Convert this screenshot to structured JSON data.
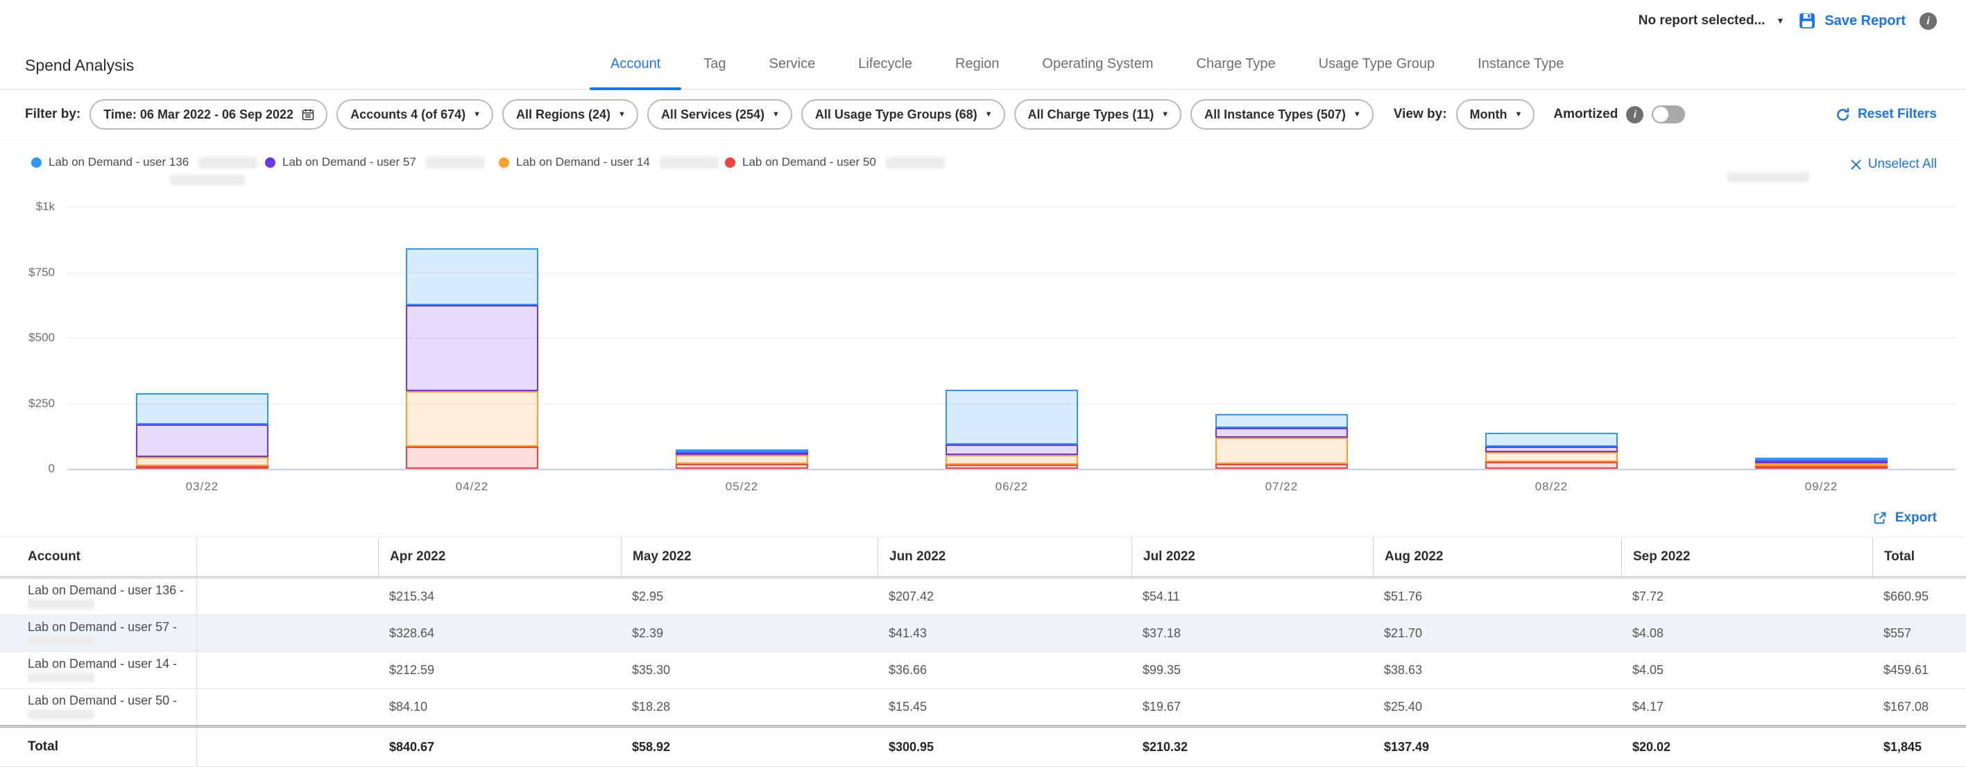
{
  "topbar": {
    "report_selector": "No report selected...",
    "save_report": "Save Report"
  },
  "page": {
    "title": "Spend Analysis"
  },
  "tabs": [
    {
      "label": "Account",
      "active": true
    },
    {
      "label": "Tag",
      "active": false
    },
    {
      "label": "Service",
      "active": false
    },
    {
      "label": "Lifecycle",
      "active": false
    },
    {
      "label": "Region",
      "active": false
    },
    {
      "label": "Operating System",
      "active": false
    },
    {
      "label": "Charge Type",
      "active": false
    },
    {
      "label": "Usage Type Group",
      "active": false
    },
    {
      "label": "Instance Type",
      "active": false
    }
  ],
  "filter_bar": {
    "label": "Filter by:",
    "time_pill": "Time: 06 Mar 2022 - 06 Sep 2022",
    "pills": [
      "Accounts 4 (of 674)",
      "All Regions (24)",
      "All Services (254)",
      "All Usage Type Groups (68)",
      "All Charge Types (11)",
      "All Instance Types (507)"
    ],
    "view_by_label": "View by:",
    "view_by_value": "Month",
    "amortized_label": "Amortized",
    "amortized_on": false,
    "reset_label": "Reset Filters"
  },
  "legend": {
    "items": [
      {
        "label": "Lab on Demand - user 136",
        "color": "#2e96f5"
      },
      {
        "label": "Lab on Demand - user 57",
        "color": "#6a35ee"
      },
      {
        "label": "Lab on Demand - user 14",
        "color": "#fba02f"
      },
      {
        "label": "Lab on Demand - user 50",
        "color": "#f0453c"
      }
    ],
    "unselect_all": "Unselect All"
  },
  "chart_data": {
    "type": "bar",
    "stacked": true,
    "categories": [
      "03/22",
      "04/22",
      "05/22",
      "06/22",
      "07/22",
      "08/22",
      "09/22"
    ],
    "series": [
      {
        "name": "Lab on Demand - user 136",
        "color": "#2e96f5",
        "values": [
          120,
          215.34,
          2.95,
          207.42,
          54.11,
          51.76,
          7.72
        ]
      },
      {
        "name": "Lab on Demand - user 57",
        "color": "#6a35ee",
        "values": [
          123,
          328.64,
          2.39,
          41.43,
          37.18,
          21.7,
          4.08
        ]
      },
      {
        "name": "Lab on Demand - user 14",
        "color": "#fba02f",
        "values": [
          35,
          212.59,
          35.3,
          36.66,
          99.35,
          38.63,
          4.05
        ]
      },
      {
        "name": "Lab on Demand - user 50",
        "color": "#f0453c",
        "values": [
          1.5,
          84.1,
          18.28,
          15.45,
          19.67,
          25.4,
          4.17
        ]
      }
    ],
    "stack_order_bottom_to_top": [
      "Lab on Demand - user 50",
      "Lab on Demand - user 14",
      "Lab on Demand - user 57",
      "Lab on Demand - user 136"
    ],
    "title": "",
    "xlabel": "",
    "ylabel": "",
    "ylim": [
      0,
      1000
    ],
    "y_ticks": [
      "$1k",
      "$750",
      "$500",
      "$250",
      "0"
    ],
    "grid": true,
    "legend_position": "top-left"
  },
  "export_label": "Export",
  "table": {
    "columns": [
      "Account",
      "Apr 2022",
      "May 2022",
      "Jun 2022",
      "Jul 2022",
      "Aug 2022",
      "Sep 2022",
      "Total"
    ],
    "rows": [
      {
        "account": "Lab on Demand - user 136 -",
        "highlight": false,
        "values": [
          "$215.34",
          "$2.95",
          "$207.42",
          "$54.11",
          "$51.76",
          "$7.72",
          "$660.95"
        ]
      },
      {
        "account": "Lab on Demand - user 57 -",
        "highlight": true,
        "values": [
          "$328.64",
          "$2.39",
          "$41.43",
          "$37.18",
          "$21.70",
          "$4.08",
          "$557"
        ]
      },
      {
        "account": "Lab on Demand - user 14 -",
        "highlight": false,
        "values": [
          "$212.59",
          "$35.30",
          "$36.66",
          "$99.35",
          "$38.63",
          "$4.05",
          "$459.61"
        ]
      },
      {
        "account": "Lab on Demand - user 50 -",
        "highlight": false,
        "values": [
          "$84.10",
          "$18.28",
          "$15.45",
          "$19.67",
          "$25.40",
          "$4.17",
          "$167.08"
        ]
      }
    ],
    "total_row": {
      "label": "Total",
      "values": [
        "$840.67",
        "$58.92",
        "$300.95",
        "$210.32",
        "$137.49",
        "$20.02",
        "$1,845"
      ]
    }
  }
}
